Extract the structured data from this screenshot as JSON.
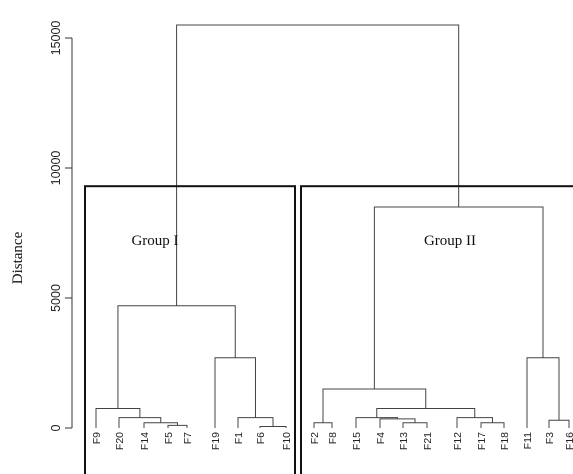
{
  "chart_data": {
    "type": "dendrogram",
    "ylabel": "Distance",
    "ylim": [
      0,
      15000
    ],
    "yticks": [
      0,
      5000,
      10000,
      15000
    ],
    "leaves": [
      "F9",
      "F20",
      "F14",
      "F5",
      "F7",
      "F19",
      "F1",
      "F6",
      "F10",
      "F2",
      "F8",
      "F15",
      "F4",
      "F13",
      "F21",
      "F12",
      "F17",
      "F18",
      "F11",
      "F3",
      "F16"
    ],
    "merges": [
      {
        "children": [
          "F5",
          "F7"
        ],
        "height": 100
      },
      {
        "children": [
          "F14",
          "F5-F7"
        ],
        "height": 200
      },
      {
        "children": [
          "F20",
          "F14-F5-F7"
        ],
        "height": 400
      },
      {
        "children": [
          "F9",
          "F20-F14-F5-F7"
        ],
        "height": 750
      },
      {
        "children": [
          "F6",
          "F10"
        ],
        "height": 60
      },
      {
        "children": [
          "F1",
          "F6-F10"
        ],
        "height": 400
      },
      {
        "children": [
          "F19",
          "F1-F6-F10"
        ],
        "height": 2700
      },
      {
        "children": [
          "Group I left",
          "Group I right"
        ],
        "height": 4700
      },
      {
        "children": [
          "F2",
          "F8"
        ],
        "height": 200
      },
      {
        "children": [
          "F13",
          "F21"
        ],
        "height": 200
      },
      {
        "children": [
          "F4",
          "F13-F21"
        ],
        "height": 350
      },
      {
        "children": [
          "F15",
          "F4-F13-F21"
        ],
        "height": 400
      },
      {
        "children": [
          "F17",
          "F18"
        ],
        "height": 200
      },
      {
        "children": [
          "F12",
          "F17-F18"
        ],
        "height": 400
      },
      {
        "children": [
          "F15 cluster",
          "F12 cluster"
        ],
        "height": 750
      },
      {
        "children": [
          "F2-F8",
          "F15-F12 cluster"
        ],
        "height": 1500
      },
      {
        "children": [
          "F3",
          "F16"
        ],
        "height": 300
      },
      {
        "children": [
          "F11",
          "F3-F16"
        ],
        "height": 2700
      },
      {
        "children": [
          "Group II left",
          "Group II right"
        ],
        "height": 8500
      },
      {
        "children": [
          "Group I",
          "Group II"
        ],
        "height": 15500
      }
    ],
    "groups": [
      {
        "label": "Group I",
        "leaves": [
          "F9",
          "F20",
          "F14",
          "F5",
          "F7",
          "F19",
          "F1",
          "F6",
          "F10"
        ]
      },
      {
        "label": "Group II",
        "leaves": [
          "F2",
          "F8",
          "F15",
          "F4",
          "F13",
          "F21",
          "F12",
          "F17",
          "F18",
          "F11",
          "F3",
          "F16"
        ]
      }
    ],
    "group_box_top": 9300
  }
}
